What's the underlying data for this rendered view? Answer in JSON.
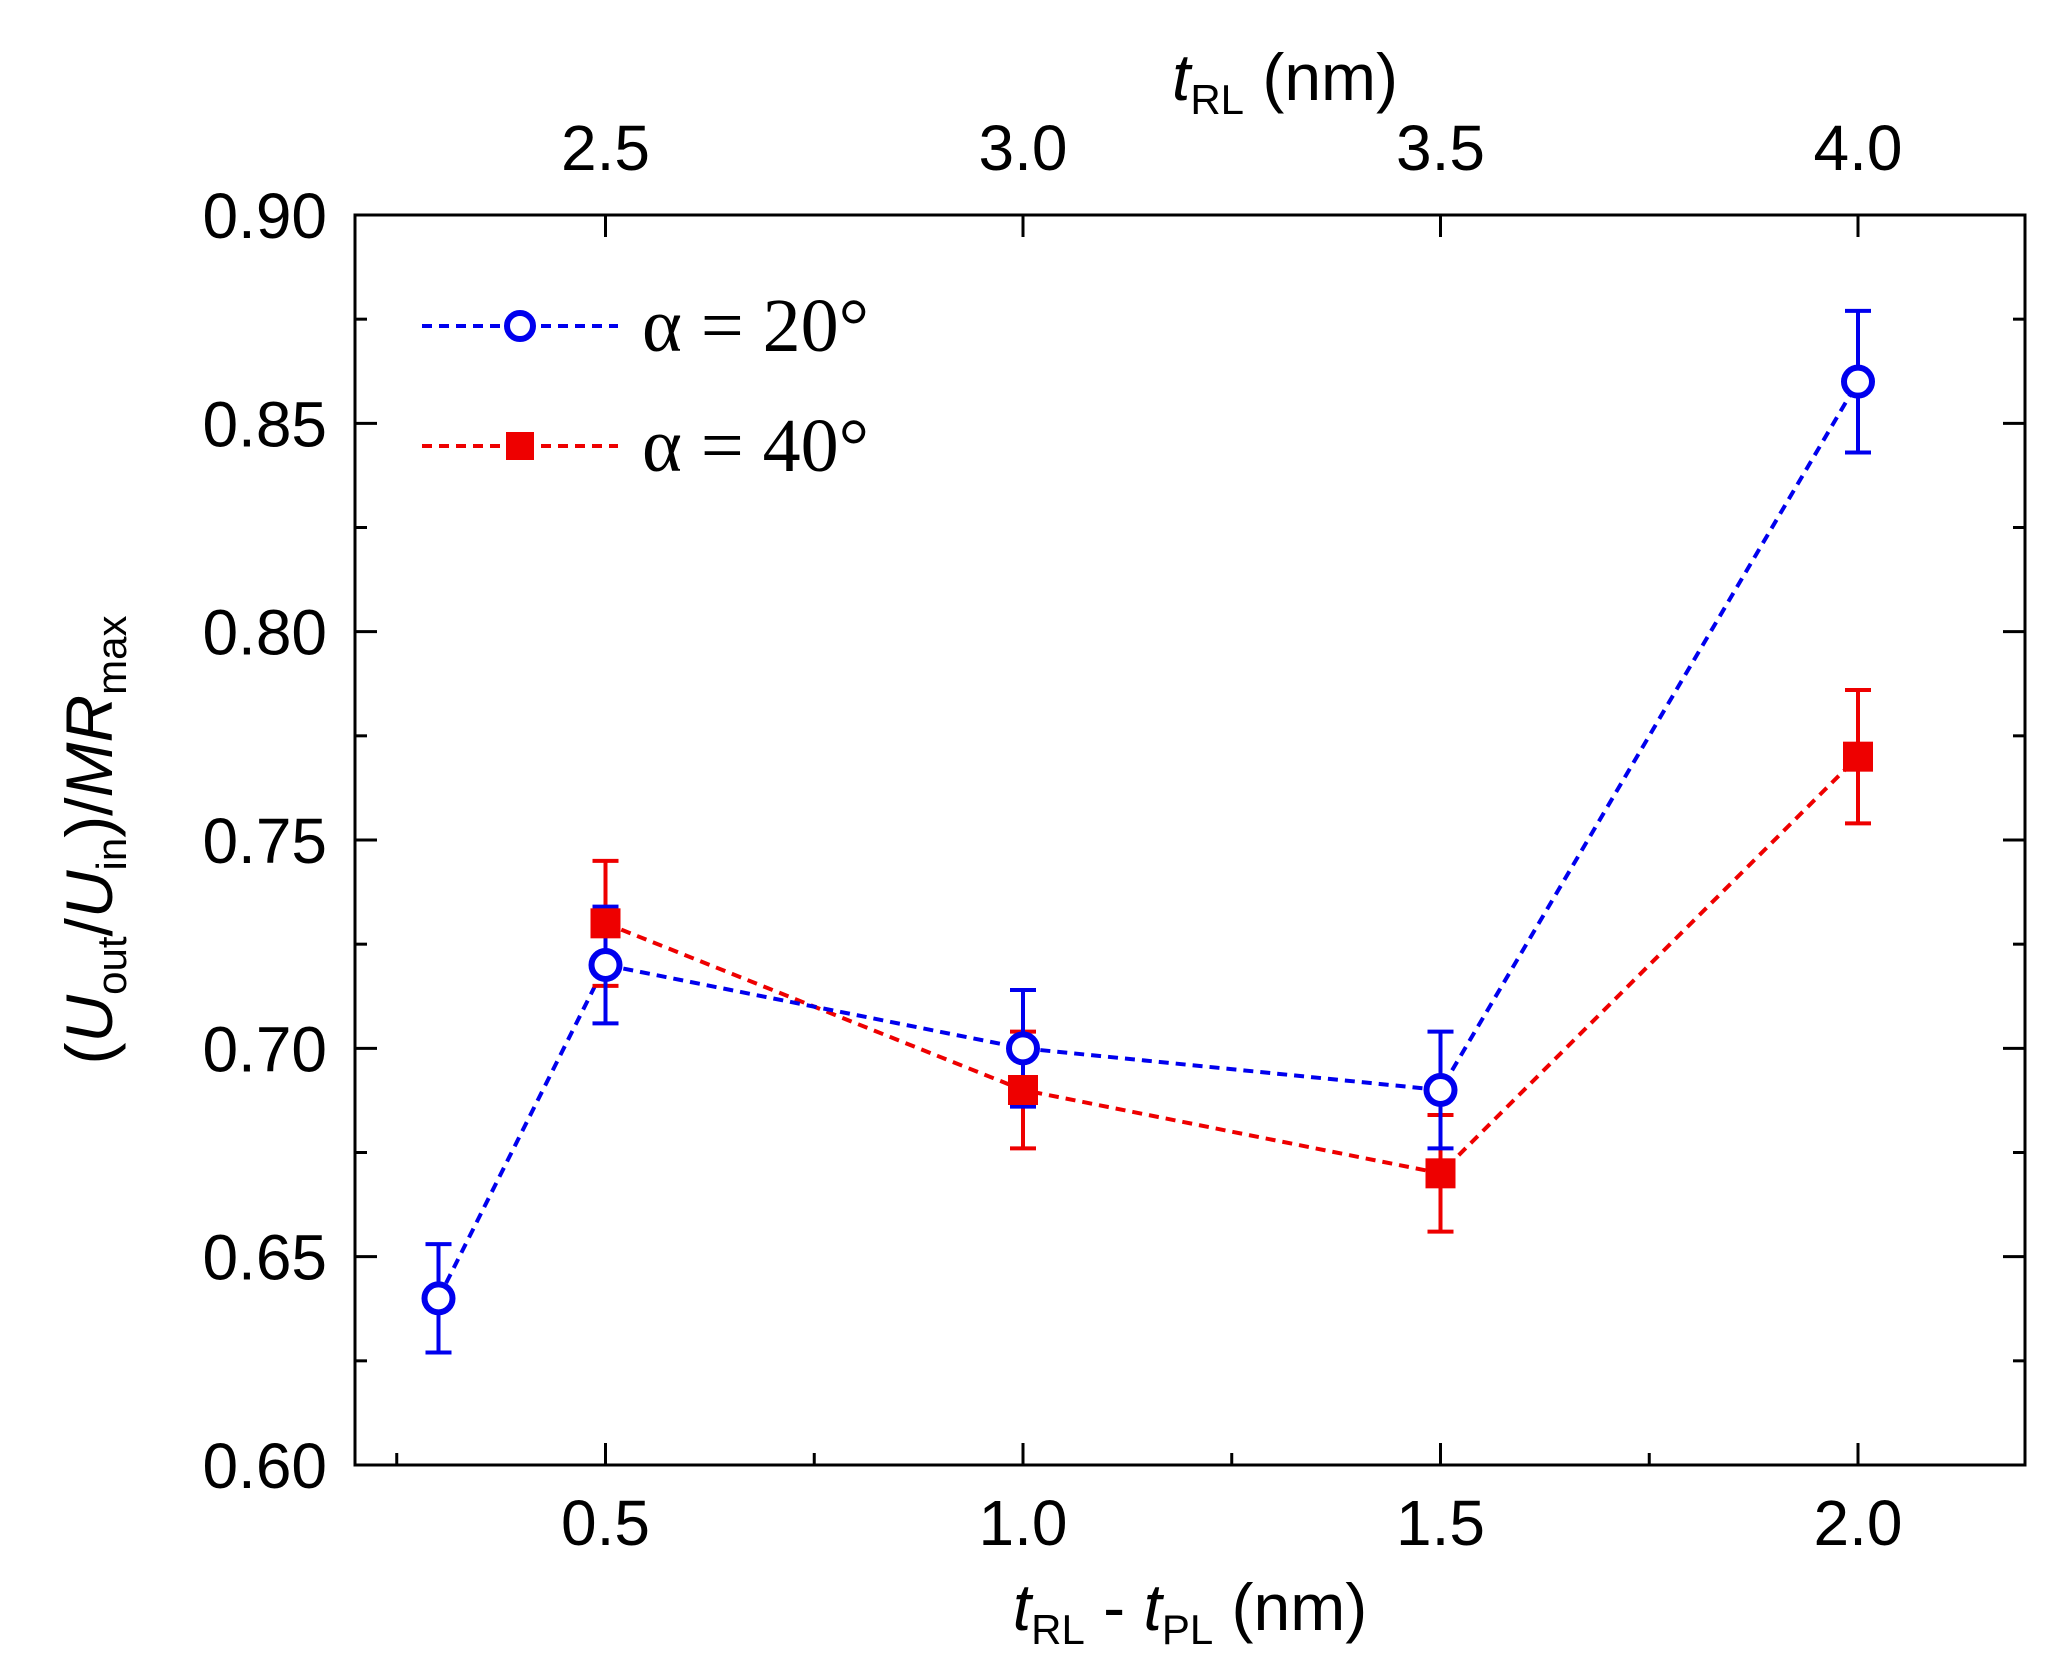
{
  "chart_data": {
    "type": "scatter",
    "x_bottom": {
      "label_main": "t",
      "label_sub1": "RL",
      "label_mid": " - ",
      "label_main2": "t",
      "label_sub2": "PL",
      "label_unit": " (nm)",
      "range": [
        0.2,
        2.2
      ],
      "ticks": [
        0.5,
        1.0,
        1.5,
        2.0
      ],
      "tick_labels": [
        "0.5",
        "1.0",
        "1.5",
        "2.0"
      ]
    },
    "x_top": {
      "label_main": "t",
      "label_sub": "RL",
      "label_unit": " (nm)",
      "tick_positions_bottom_units": [
        0.5,
        1.0,
        1.5,
        2.0
      ],
      "tick_labels": [
        "2.5",
        "3.0",
        "3.5",
        "4.0"
      ]
    },
    "y": {
      "label_open": "(",
      "label_U1": "U",
      "label_sub_out": "out",
      "label_slash": "/",
      "label_U2": "U",
      "label_sub_in": "in",
      "label_close": ")/",
      "label_MR": "MR",
      "label_sub_max": "max",
      "range": [
        0.6,
        0.9
      ],
      "ticks": [
        0.6,
        0.65,
        0.7,
        0.75,
        0.8,
        0.85,
        0.9
      ],
      "tick_labels": [
        "0.60",
        "0.65",
        "0.70",
        "0.75",
        "0.80",
        "0.85",
        "0.90"
      ]
    },
    "series": [
      {
        "name": "α = 20°",
        "color": "#0000ee",
        "marker": "open-circle",
        "line": "dashed",
        "x": [
          0.3,
          0.5,
          1.0,
          1.5,
          2.0
        ],
        "y": [
          0.64,
          0.72,
          0.7,
          0.69,
          0.86
        ],
        "yerr": [
          0.013,
          0.014,
          0.014,
          0.014,
          0.017
        ]
      },
      {
        "name": "α = 40°",
        "color": "#ee0000",
        "marker": "filled-square",
        "line": "dashed",
        "x": [
          0.5,
          1.0,
          1.5,
          2.0
        ],
        "y": [
          0.73,
          0.69,
          0.67,
          0.77
        ],
        "yerr": [
          0.015,
          0.014,
          0.014,
          0.016
        ]
      }
    ],
    "legend": {
      "placement": "top-left",
      "entries": [
        "α = 20°",
        "α = 40°"
      ]
    }
  }
}
